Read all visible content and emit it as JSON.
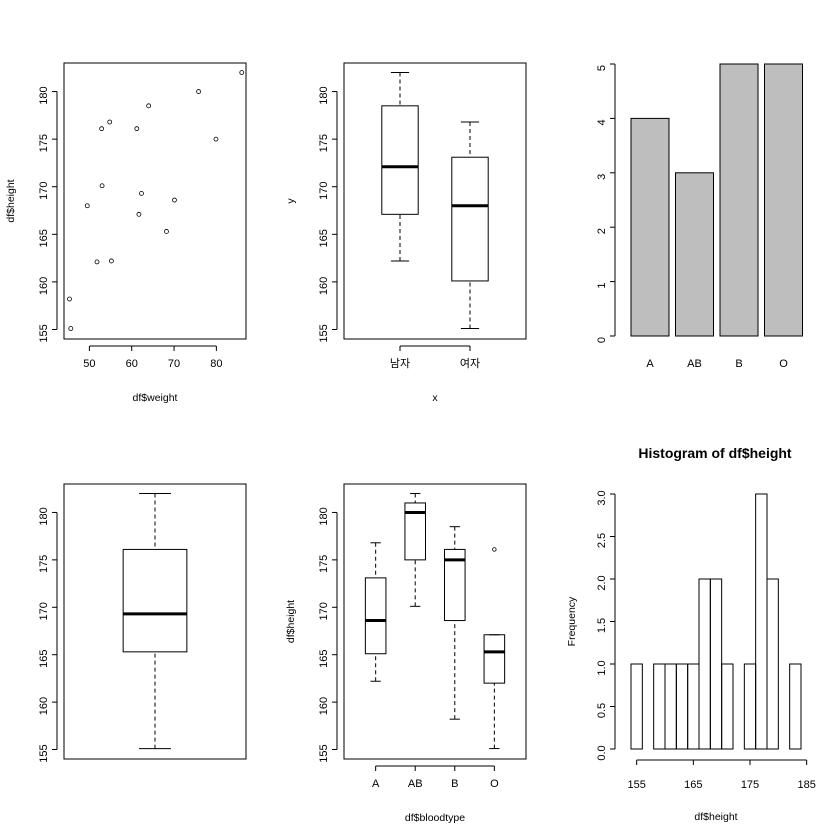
{
  "chart_data": [
    {
      "type": "scatter",
      "xlabel": "df$weight",
      "ylabel": "df$height",
      "title": "",
      "xlim": [
        44,
        87
      ],
      "ylim": [
        154,
        183
      ],
      "xticks": [
        "50",
        "60",
        "70",
        "80"
      ],
      "yticks": [
        "155",
        "160",
        "165",
        "170",
        "175",
        "180"
      ],
      "points": [
        {
          "x": 45.3,
          "y": 158.2
        },
        {
          "x": 45.6,
          "y": 155.1
        },
        {
          "x": 49.5,
          "y": 168.0
        },
        {
          "x": 51.8,
          "y": 162.1
        },
        {
          "x": 52.9,
          "y": 176.1
        },
        {
          "x": 53.0,
          "y": 170.1
        },
        {
          "x": 54.8,
          "y": 176.8
        },
        {
          "x": 55.2,
          "y": 162.2
        },
        {
          "x": 61.2,
          "y": 176.1
        },
        {
          "x": 61.7,
          "y": 167.1
        },
        {
          "x": 62.3,
          "y": 169.3
        },
        {
          "x": 64.0,
          "y": 178.5
        },
        {
          "x": 68.2,
          "y": 165.3
        },
        {
          "x": 70.1,
          "y": 168.6
        },
        {
          "x": 75.8,
          "y": 180.0
        },
        {
          "x": 79.9,
          "y": 175.0
        },
        {
          "x": 86.0,
          "y": 182.0
        }
      ],
      "grid": false
    },
    {
      "type": "box",
      "xlabel": "x",
      "ylabel": "y",
      "title": "",
      "ylim": [
        154,
        183
      ],
      "yticks": [
        "155",
        "160",
        "165",
        "170",
        "175",
        "180"
      ],
      "categories": [
        "남자",
        "여자"
      ],
      "boxes": [
        {
          "low": 162.2,
          "q1": 167.1,
          "median": 172.1,
          "q3": 178.5,
          "high": 182.0,
          "outliers": []
        },
        {
          "low": 155.1,
          "q1": 160.1,
          "median": 168.0,
          "q3": 173.1,
          "high": 176.8,
          "outliers": []
        }
      ]
    },
    {
      "type": "bar",
      "title": "",
      "categories": [
        "A",
        "AB",
        "B",
        "O"
      ],
      "values": [
        4,
        3,
        5,
        5
      ],
      "ylim": [
        0,
        5
      ],
      "yticks": [
        "0",
        "1",
        "2",
        "3",
        "4",
        "5"
      ],
      "bar_color": "#bebebe"
    },
    {
      "type": "box",
      "title": "",
      "xlabel": "",
      "ylabel": "",
      "ylim": [
        154,
        183
      ],
      "yticks": [
        "155",
        "160",
        "165",
        "170",
        "175",
        "180"
      ],
      "categories": [
        ""
      ],
      "boxes": [
        {
          "low": 155.1,
          "q1": 165.3,
          "median": 169.3,
          "q3": 176.1,
          "high": 182.0,
          "outliers": []
        }
      ]
    },
    {
      "type": "box",
      "xlabel": "df$bloodtype",
      "ylabel": "df$height",
      "title": "",
      "ylim": [
        154,
        183
      ],
      "yticks": [
        "155",
        "160",
        "165",
        "170",
        "175",
        "180"
      ],
      "categories": [
        "A",
        "AB",
        "B",
        "O"
      ],
      "boxes": [
        {
          "low": 162.2,
          "q1": 165.1,
          "median": 168.6,
          "q3": 173.1,
          "high": 176.8,
          "outliers": []
        },
        {
          "low": 170.1,
          "q1": 175.0,
          "median": 180.0,
          "q3": 181.0,
          "high": 182.0,
          "outliers": []
        },
        {
          "low": 158.2,
          "q1": 168.6,
          "median": 175.0,
          "q3": 176.1,
          "high": 178.5,
          "outliers": []
        },
        {
          "low": 155.1,
          "q1": 162.0,
          "median": 165.3,
          "q3": 167.1,
          "high": 167.1,
          "outliers": [
            176.1
          ]
        }
      ]
    },
    {
      "type": "histogram",
      "title": "Histogram of df$height",
      "xlabel": "df$height",
      "ylabel": "Frequency",
      "bin_width": 2,
      "bin_start": 154,
      "counts": [
        1,
        0,
        1,
        1,
        1,
        1,
        2,
        2,
        1,
        0,
        1,
        3,
        2,
        0,
        1
      ],
      "xlim": [
        154,
        184
      ],
      "ylim": [
        0,
        3
      ],
      "xticks": [
        "155",
        "165",
        "175",
        "185"
      ],
      "yticks": [
        "0.0",
        "0.5",
        "1.0",
        "1.5",
        "2.0",
        "2.5",
        "3.0"
      ]
    }
  ]
}
